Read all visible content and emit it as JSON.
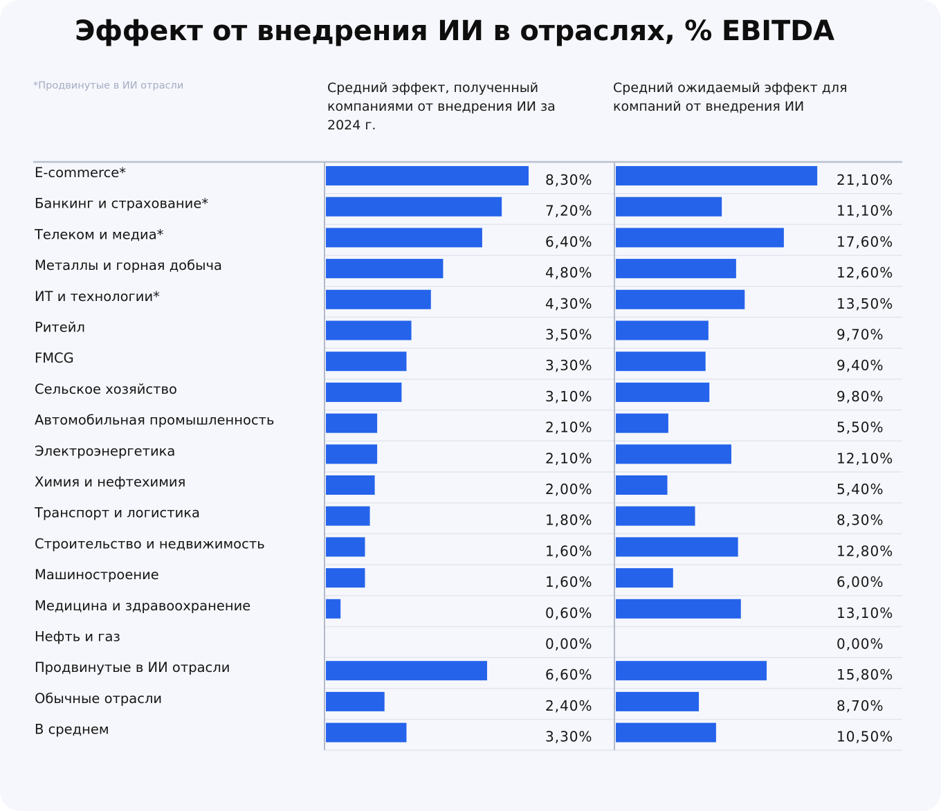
{
  "chart_data": {
    "type": "bar",
    "title": "Эффект от внедрения ИИ в отраслях, % EBITDA",
    "note": "*Продвинутые в ИИ отрасли",
    "bar_color": "#2563eb",
    "categories": [
      "E-commerce*",
      "Банкинг и страхование*",
      "Телеком и медиа*",
      "Металлы и горная добыча",
      "ИТ и технологии*",
      "Ритейл",
      "FMCG",
      "Сельское хозяйство",
      "Автомобильная промышленность",
      "Электроэнергетика",
      "Химия и нефтехимия",
      "Транспорт и логистика",
      "Строительство и недвижимость",
      "Машиностроение",
      "Медицина и здравоохранение",
      "Нефть и газ",
      "Продвинутые в ИИ отрасли",
      "Обычные отрасли",
      "В среднем"
    ],
    "series": [
      {
        "name": "Средний эффект, полученный компаниями от внедрения ИИ за 2024 г.",
        "values": [
          8.3,
          7.2,
          6.4,
          4.8,
          4.3,
          3.5,
          3.3,
          3.1,
          2.1,
          2.1,
          2.0,
          1.8,
          1.6,
          1.6,
          0.6,
          0.0,
          6.6,
          2.4,
          3.3
        ],
        "labels": [
          "8,30%",
          "7,20%",
          "6,40%",
          "4,80%",
          "4,30%",
          "3,50%",
          "3,30%",
          "3,10%",
          "2,10%",
          "2,10%",
          "2,00%",
          "1,80%",
          "1,60%",
          "1,60%",
          "0,60%",
          "0,00%",
          "6,60%",
          "2,40%",
          "3,30%"
        ]
      },
      {
        "name": "Средний ожидаемый эффект для компаний от внедрения ИИ",
        "values": [
          21.1,
          11.1,
          17.6,
          12.6,
          13.5,
          9.7,
          9.4,
          9.8,
          5.5,
          12.1,
          5.4,
          8.3,
          12.8,
          6.0,
          13.1,
          0.0,
          15.8,
          8.7,
          10.5
        ],
        "labels": [
          "21,10%",
          "11,10%",
          "17,60%",
          "12,60%",
          "13,50%",
          "9,70%",
          "9,40%",
          "9,80%",
          "5,50%",
          "12,10%",
          "5,40%",
          "8,30%",
          "12,80%",
          "6,00%",
          "13,10%",
          "0,00%",
          "15,80%",
          "8,70%",
          "10,50%"
        ]
      }
    ]
  }
}
